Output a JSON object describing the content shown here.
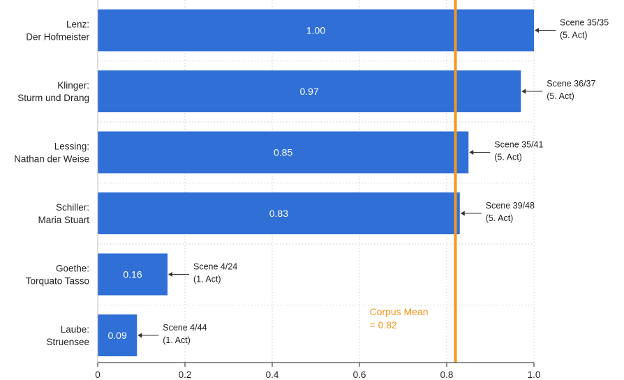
{
  "chart_data": {
    "type": "bar",
    "orientation": "horizontal",
    "categories": [
      [
        "Lenz:",
        "Der Hofmeister"
      ],
      [
        "Klinger:",
        "Sturm und Drang"
      ],
      [
        "Lessing:",
        "Nathan der Weise"
      ],
      [
        "Schiller:",
        "Maria Stuart"
      ],
      [
        "Goethe:",
        "Torquato Tasso"
      ],
      [
        "Laube:",
        "Struensee"
      ]
    ],
    "values": [
      1.0,
      0.97,
      0.85,
      0.83,
      0.16,
      0.09
    ],
    "value_labels": [
      "1.00",
      "0.97",
      "0.85",
      "0.83",
      "0.16",
      "0.09"
    ],
    "annotations": [
      [
        "Scene 35/35",
        "(5. Act)"
      ],
      [
        "Scene 36/37",
        "(5. Act)"
      ],
      [
        "Scene 35/41",
        "(5. Act)"
      ],
      [
        "Scene 39/48",
        "(5. Act)"
      ],
      [
        "Scene 4/24",
        "(1. Act)"
      ],
      [
        "Scene 4/44",
        "(1. Act)"
      ]
    ],
    "xlim": [
      0,
      1.0
    ],
    "xticks": [
      0,
      0.2,
      0.4,
      0.6,
      0.8,
      1.0
    ],
    "xtick_labels": [
      "0",
      "0.2",
      "0.4",
      "0.6",
      "0.8",
      "1.0"
    ],
    "reference_line": {
      "value": 0.82,
      "label": [
        "Corpus Mean",
        "= 0.82"
      ]
    },
    "grid": "dotted",
    "colors": {
      "bar": "#2f6fd6",
      "mean": "#f5961e",
      "grid": "#c8c8c8"
    }
  }
}
